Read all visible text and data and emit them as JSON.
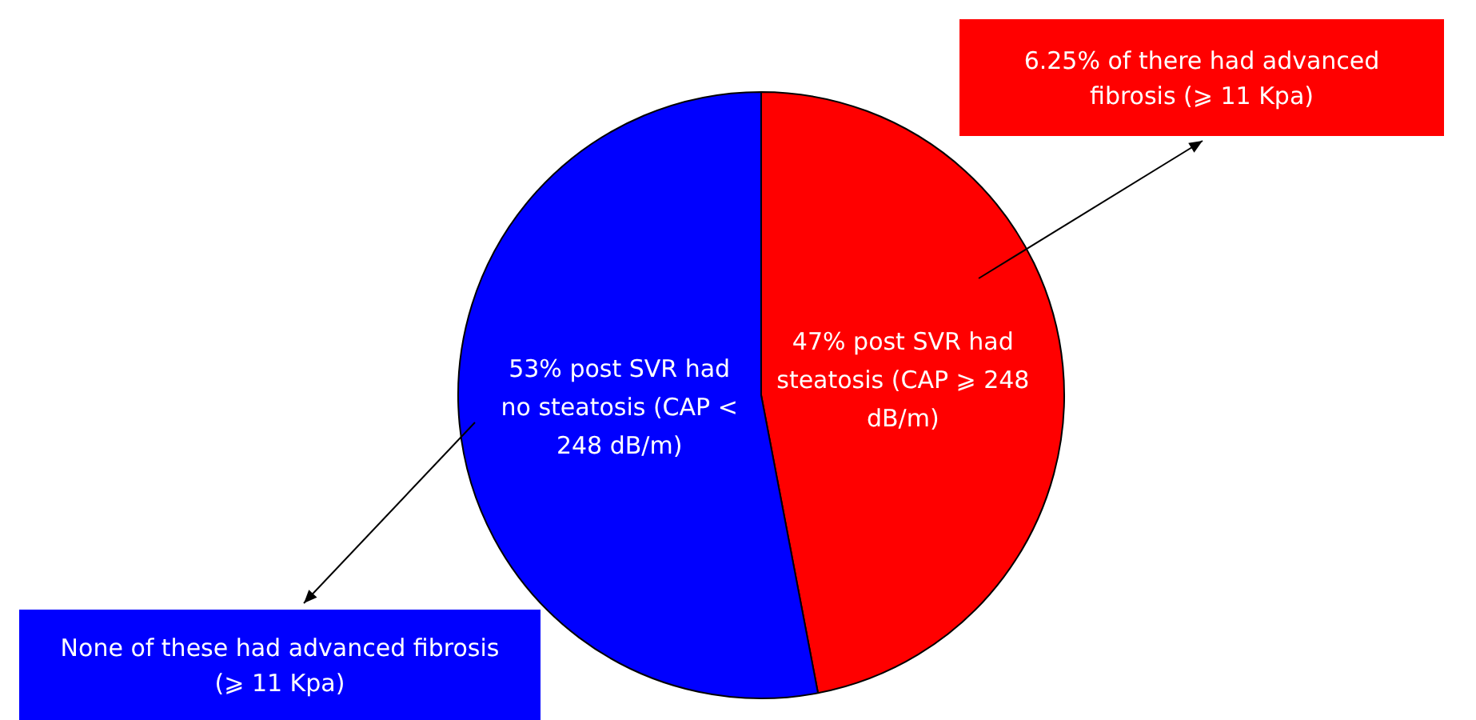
{
  "chart_data": {
    "type": "pie",
    "categories": [
      "47% post SVR had steatosis (CAP ⩾ 248 dB/m)",
      "53% post SVR had no steatosis (CAP < 248 dB/m)"
    ],
    "values": [
      47,
      53
    ],
    "colors": [
      "#ff0000",
      "#0000ff"
    ],
    "legend": false,
    "annotations": [
      "6.25% of there had advanced fibrosis (⩾ 11 Kpa)",
      "None of these had advanced fibrosis (⩾ 11 Kpa)"
    ]
  }
}
